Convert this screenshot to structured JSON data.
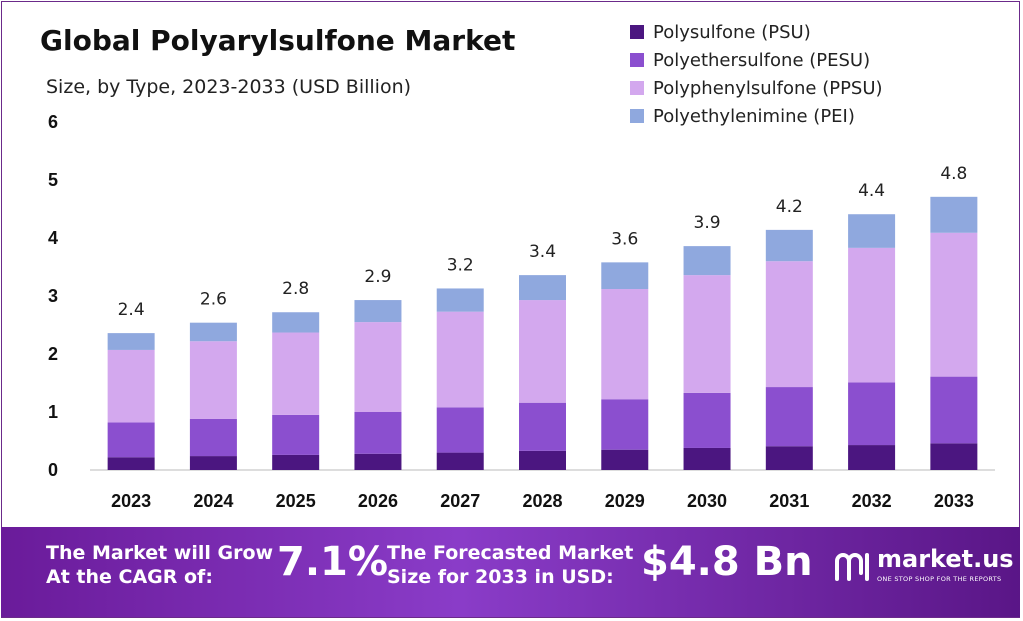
{
  "title": "Global Polyarylsulfone Market",
  "subtitle": "Size, by Type, 2023-2033 (USD Billion)",
  "colors": {
    "psu": "#4b1680",
    "pesu": "#8b4fcf",
    "ppsu": "#d3a8ee",
    "pei": "#8fa8de",
    "banner": "#7a2db3"
  },
  "legend": [
    {
      "label": "Polysulfone (PSU)",
      "color": "#4b1680"
    },
    {
      "label": "Polyethersulfone (PESU)",
      "color": "#8b4fcf"
    },
    {
      "label": "Polyphenylsulfone (PPSU)",
      "color": "#d3a8ee"
    },
    {
      "label": "Polyethylenimine (PEI)",
      "color": "#8fa8de"
    }
  ],
  "chart_data": {
    "type": "bar",
    "stacked": true,
    "title": "Global Polyarylsulfone Market",
    "subtitle": "Size, by Type, 2023-2033 (USD Billion)",
    "categories": [
      "2023",
      "2024",
      "2025",
      "2026",
      "2027",
      "2028",
      "2029",
      "2030",
      "2031",
      "2032",
      "2033"
    ],
    "series": [
      {
        "name": "Polysulfone (PSU)",
        "color": "#4b1680",
        "values": [
          0.22,
          0.24,
          0.26,
          0.28,
          0.3,
          0.33,
          0.35,
          0.38,
          0.41,
          0.43,
          0.46
        ]
      },
      {
        "name": "Polyethersulfone (PESU)",
        "color": "#8b4fcf",
        "values": [
          0.6,
          0.64,
          0.69,
          0.72,
          0.78,
          0.83,
          0.87,
          0.95,
          1.02,
          1.08,
          1.15
        ]
      },
      {
        "name": "Polyphenylsulfone (PPSU)",
        "color": "#d3a8ee",
        "values": [
          1.25,
          1.34,
          1.42,
          1.55,
          1.65,
          1.77,
          1.9,
          2.03,
          2.17,
          2.32,
          2.48
        ]
      },
      {
        "name": "Polyethylenimine (PEI)",
        "color": "#8fa8de",
        "values": [
          0.29,
          0.32,
          0.35,
          0.38,
          0.4,
          0.43,
          0.46,
          0.5,
          0.54,
          0.58,
          0.62
        ]
      }
    ],
    "totals": [
      "2.4",
      "2.6",
      "2.8",
      "2.9",
      "3.2",
      "3.4",
      "3.6",
      "3.9",
      "4.2",
      "4.4",
      "4.8"
    ],
    "yticks": [
      "0",
      "1",
      "2",
      "3",
      "4",
      "5",
      "6"
    ],
    "ylim": [
      0,
      6
    ],
    "xlabel": "",
    "ylabel": "",
    "grid": false,
    "legend_position": "top-right"
  },
  "footer": {
    "cagr_text_line1": "The Market will Grow",
    "cagr_text_line2": "At the CAGR of:",
    "cagr_value": "7.1%",
    "forecast_text_line1": "The Forecasted Market",
    "forecast_text_line2": "Size for 2033 in USD:",
    "forecast_value": "$4.8 Bn"
  },
  "logo": {
    "name": "market.us",
    "tagline": "ONE STOP SHOP FOR THE REPORTS"
  }
}
